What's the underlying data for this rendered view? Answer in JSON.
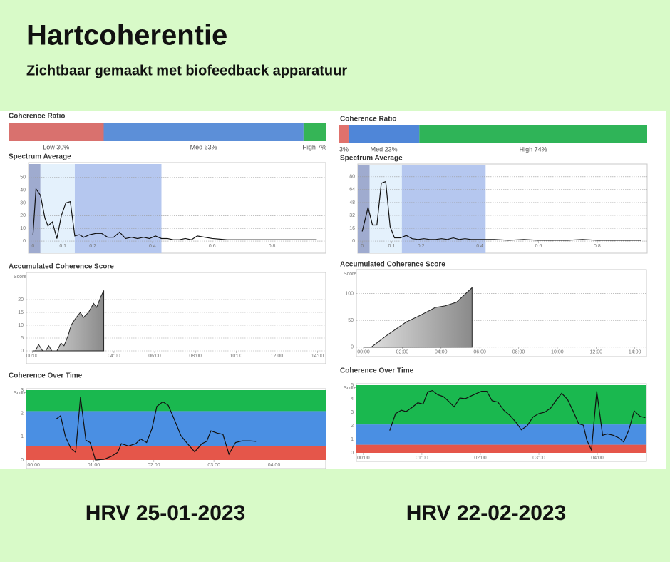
{
  "header": {
    "title": "Hartcoherentie",
    "subtitle": "Zichtbaar gemaakt met biofeedback apparatuur"
  },
  "captions": [
    "HRV 25-01-2023",
    "HRV 22-02-2023"
  ],
  "chart_data": [
    {
      "type": "stacked_bar",
      "title": "Coherence Ratio",
      "values": [
        30,
        63,
        7
      ],
      "value_labels": [
        "Low 30%",
        "Med 63%",
        "High 7%"
      ],
      "colors": [
        "#d9716e",
        "#5c8fd8",
        "#35b556"
      ],
      "xlim": [
        0,
        100
      ]
    },
    {
      "type": "line",
      "title": "Spectrum Average",
      "x": [
        0.0,
        0.01,
        0.025,
        0.04,
        0.05,
        0.065,
        0.08,
        0.095,
        0.11,
        0.125,
        0.14,
        0.155,
        0.17,
        0.19,
        0.21,
        0.23,
        0.25,
        0.27,
        0.29,
        0.31,
        0.33,
        0.35,
        0.37,
        0.39,
        0.41,
        0.43,
        0.45,
        0.47,
        0.49,
        0.51,
        0.53,
        0.55,
        0.6,
        0.65,
        0.7,
        0.75,
        0.8,
        0.85,
        0.9,
        0.95
      ],
      "values": [
        5,
        41,
        36,
        18,
        12,
        15,
        2,
        20,
        30,
        31,
        4,
        5,
        3,
        5,
        6,
        6,
        3,
        3,
        7,
        2,
        3,
        2,
        3,
        2,
        4,
        2,
        2,
        1,
        1,
        2,
        1,
        4,
        2,
        1,
        1,
        1,
        1,
        1,
        1,
        1
      ],
      "xlim": [
        -0.015,
        0.98
      ],
      "xticks": [
        0,
        0.1,
        0.2,
        0.4,
        0.6,
        0.8
      ],
      "ylim": [
        -9.5,
        60.5
      ],
      "yticks": [
        0,
        10,
        20,
        30,
        40,
        50
      ],
      "grid": true,
      "bands": [
        {
          "from": -0.015,
          "to": 0.025,
          "color": "#9fabcf"
        },
        {
          "from": 0.025,
          "to": 0.14,
          "color": "#e4f1fc"
        },
        {
          "from": 0.14,
          "to": 0.43,
          "color": "#b5c7ef"
        }
      ]
    },
    {
      "type": "area",
      "title": "Accumulated Coherence Score",
      "y_label": "Score",
      "x": [
        0,
        0.15,
        0.3,
        0.5,
        0.65,
        0.8,
        0.95,
        1.2,
        1.4,
        1.55,
        1.75,
        1.9,
        2.1,
        2.35,
        2.5,
        2.75,
        3,
        3.15,
        3.35,
        3.5
      ],
      "values": [
        0,
        0,
        2.5,
        0,
        0,
        2,
        0,
        0,
        3,
        2,
        6,
        10,
        12.5,
        15,
        13,
        15,
        18.5,
        17,
        21,
        23.5
      ],
      "xlim": [
        -0.3,
        14.4
      ],
      "xticks": [
        {
          "value": 0,
          "label": "00:00"
        },
        {
          "value": 4,
          "label": "04:00"
        },
        {
          "value": 6,
          "label": "06:00"
        },
        {
          "value": 8,
          "label": "08:00"
        },
        {
          "value": 10,
          "label": "10:00"
        },
        {
          "value": 12,
          "label": "12:00"
        },
        {
          "value": 14,
          "label": "14:00"
        }
      ],
      "ylim": [
        -5,
        30
      ],
      "yticks": [
        0,
        5,
        10,
        15,
        20
      ],
      "grid": true
    },
    {
      "type": "line",
      "title": "Coherence Over Time",
      "y_label": "Score",
      "x": [
        0.37,
        0.45,
        0.53,
        0.62,
        0.7,
        0.78,
        0.87,
        0.94,
        1.03,
        1.17,
        1.29,
        1.4,
        1.46,
        1.58,
        1.7,
        1.78,
        1.88,
        1.97,
        2.05,
        2.15,
        2.24,
        2.34,
        2.45,
        2.56,
        2.68,
        2.8,
        2.88,
        2.95,
        3.06,
        3.15,
        3.25,
        3.36,
        3.47,
        3.6,
        3.7
      ],
      "values": [
        1.75,
        1.9,
        1.0,
        0.5,
        0.33,
        2.7,
        0.85,
        0.75,
        0,
        0.03,
        0.15,
        0.33,
        0.7,
        0.6,
        0.7,
        0.9,
        0.75,
        1.35,
        2.3,
        2.5,
        2.35,
        1.75,
        1.05,
        0.7,
        0.35,
        0.7,
        0.8,
        1.25,
        1.15,
        1.1,
        0.25,
        0.75,
        0.82,
        0.82,
        0.8
      ],
      "xlim": [
        -0.12,
        4.86
      ],
      "xticks": [
        {
          "value": 0,
          "label": "00:00"
        },
        {
          "value": 1,
          "label": "01:00"
        },
        {
          "value": 2,
          "label": "02:00"
        },
        {
          "value": 3,
          "label": "03:00"
        },
        {
          "value": 4,
          "label": "04:00"
        }
      ],
      "ylim": [
        0,
        3
      ],
      "yticks": [
        0,
        1,
        2,
        3
      ],
      "grid": false,
      "zones": [
        {
          "from": 0,
          "to": 0.6,
          "color": "#e5564a"
        },
        {
          "from": 0.6,
          "to": 2.1,
          "color": "#4a8fe3"
        },
        {
          "from": 2.1,
          "to": 3,
          "color": "#1ab84f"
        }
      ]
    },
    {
      "type": "stacked_bar",
      "title": "Coherence Ratio",
      "values": [
        3,
        23,
        74
      ],
      "value_labels": [
        "3%",
        "Med 23%",
        "High 74%"
      ],
      "colors": [
        "#e0716c",
        "#4f86d8",
        "#2fb458"
      ],
      "xlim": [
        0,
        100
      ]
    },
    {
      "type": "line",
      "title": "Spectrum Average",
      "x": [
        0.0,
        0.02,
        0.035,
        0.05,
        0.065,
        0.08,
        0.095,
        0.11,
        0.13,
        0.15,
        0.17,
        0.19,
        0.21,
        0.23,
        0.25,
        0.27,
        0.29,
        0.31,
        0.33,
        0.35,
        0.37,
        0.4,
        0.45,
        0.5,
        0.55,
        0.6,
        0.65,
        0.7,
        0.75,
        0.8,
        0.85,
        0.9,
        0.95
      ],
      "values": [
        12,
        42,
        20,
        20,
        72,
        74,
        18,
        4,
        4,
        7,
        3,
        2,
        3,
        2,
        2,
        3,
        2,
        4,
        2,
        3,
        2,
        2,
        2,
        1,
        2,
        1,
        1,
        1,
        2,
        1,
        1,
        1,
        1
      ],
      "xlim": [
        -0.015,
        0.97
      ],
      "xticks": [
        0,
        0.1,
        0.2,
        0.4,
        0.6,
        0.8
      ],
      "ylim": [
        -15,
        94
      ],
      "yticks": [
        0,
        16,
        32,
        48,
        64,
        80
      ],
      "grid": true,
      "bands": [
        {
          "from": -0.015,
          "to": 0.025,
          "color": "#9fabcf"
        },
        {
          "from": 0.025,
          "to": 0.135,
          "color": "#e4f1fc"
        },
        {
          "from": 0.135,
          "to": 0.42,
          "color": "#b5c7ef"
        }
      ]
    },
    {
      "type": "area",
      "title": "Accumulated Coherence Score",
      "y_label": "Score",
      "x": [
        0,
        0.4,
        1.2,
        2.2,
        2.9,
        3.7,
        4.2,
        4.8,
        5.6
      ],
      "values": [
        0,
        0,
        22,
        47,
        59,
        74,
        77,
        84,
        111
      ],
      "xlim": [
        -0.37,
        14.6
      ],
      "xticks": [
        {
          "value": 0,
          "label": "00:00"
        },
        {
          "value": 2,
          "label": "02:00"
        },
        {
          "value": 4,
          "label": "04:00"
        },
        {
          "value": 6,
          "label": "06:00"
        },
        {
          "value": 8,
          "label": "08:00"
        },
        {
          "value": 10,
          "label": "10:00"
        },
        {
          "value": 12,
          "label": "12:00"
        },
        {
          "value": 14,
          "label": "14:00"
        }
      ],
      "ylim": [
        -17.5,
        142
      ],
      "yticks": [
        0,
        50,
        100
      ],
      "grid": true
    },
    {
      "type": "line",
      "title": "Coherence Over Time",
      "y_label": "Score",
      "x": [
        0.45,
        0.55,
        0.65,
        0.73,
        0.83,
        0.93,
        1.02,
        1.1,
        1.18,
        1.27,
        1.37,
        1.46,
        1.55,
        1.65,
        1.74,
        1.84,
        1.94,
        2.02,
        2.11,
        2.2,
        2.3,
        2.4,
        2.51,
        2.62,
        2.7,
        2.8,
        2.9,
        3.0,
        3.1,
        3.2,
        3.29,
        3.39,
        3.49,
        3.59,
        3.68,
        3.76,
        3.82,
        3.9,
        3.99,
        4.09,
        4.17,
        4.27,
        4.37,
        4.45,
        4.54,
        4.63,
        4.73,
        4.82
      ],
      "values": [
        1.65,
        2.9,
        3.15,
        3.05,
        3.35,
        3.7,
        3.6,
        4.5,
        4.6,
        4.3,
        4.15,
        3.8,
        3.4,
        4.05,
        4.0,
        4.2,
        4.4,
        4.55,
        4.55,
        3.85,
        3.75,
        3.15,
        2.75,
        2.2,
        1.7,
        2.0,
        2.65,
        2.9,
        3.0,
        3.3,
        3.85,
        4.4,
        3.95,
        3.05,
        2.15,
        2.05,
        0.95,
        0.2,
        4.55,
        1.3,
        1.4,
        1.3,
        1.1,
        0.8,
        1.7,
        3.1,
        2.7,
        2.6
      ],
      "xlim": [
        -0.12,
        4.84
      ],
      "xticks": [
        {
          "value": 0,
          "label": "00:00"
        },
        {
          "value": 1,
          "label": "01:00"
        },
        {
          "value": 2,
          "label": "02:00"
        },
        {
          "value": 3,
          "label": "03:00"
        },
        {
          "value": 4,
          "label": "04:00"
        }
      ],
      "ylim": [
        0,
        5
      ],
      "yticks": [
        0,
        1,
        2,
        3,
        4,
        5
      ],
      "grid": false,
      "zones": [
        {
          "from": 0,
          "to": 0.6,
          "color": "#e5564a"
        },
        {
          "from": 0.6,
          "to": 2.1,
          "color": "#4a8fe3"
        },
        {
          "from": 2.1,
          "to": 5,
          "color": "#1ab84f"
        }
      ]
    }
  ]
}
